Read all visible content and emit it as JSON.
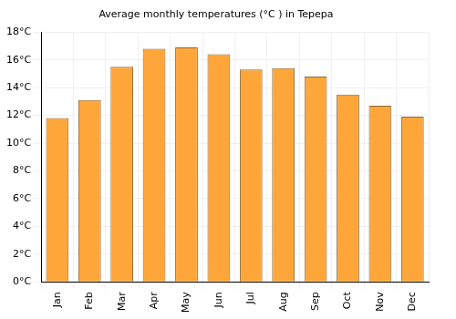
{
  "chart_data": {
    "type": "bar",
    "title": "Average monthly temperatures (°C ) in Tepepa",
    "categories": [
      "Jan",
      "Feb",
      "Mar",
      "Apr",
      "May",
      "Jun",
      "Jul",
      "Aug",
      "Sep",
      "Oct",
      "Nov",
      "Dec"
    ],
    "values": [
      11.8,
      13.1,
      15.5,
      16.8,
      16.9,
      16.4,
      15.3,
      15.4,
      14.8,
      13.5,
      12.7,
      11.9
    ],
    "color": "#ffa63a",
    "ylim": [
      0,
      18
    ],
    "yticks": [
      {
        "value": 0,
        "label": "0°C"
      },
      {
        "value": 2,
        "label": "2°C"
      },
      {
        "value": 4,
        "label": "4°C"
      },
      {
        "value": 6,
        "label": "6°C"
      },
      {
        "value": 8,
        "label": "8°C"
      },
      {
        "value": 10,
        "label": "10°C"
      },
      {
        "value": 12,
        "label": "12°C"
      },
      {
        "value": 14,
        "label": "14°C"
      },
      {
        "value": 16,
        "label": "16°C"
      },
      {
        "value": 18,
        "label": "18°C"
      }
    ],
    "grid": true
  }
}
